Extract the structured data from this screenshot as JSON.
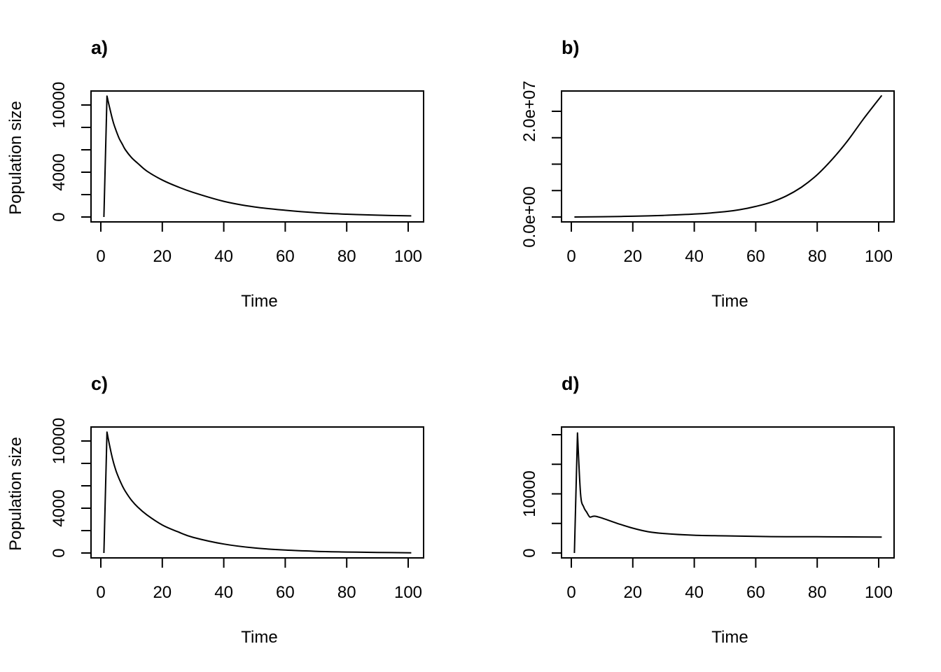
{
  "chart_data": [
    {
      "type": "line",
      "panel": "a",
      "title": "a)",
      "xlabel": "Time",
      "ylabel": "Population size",
      "xlim": [
        1,
        101
      ],
      "ylim": [
        0,
        11000
      ],
      "x_ticks": [
        0,
        20,
        40,
        60,
        80,
        100
      ],
      "y_ticks": [
        0,
        2000,
        4000,
        6000,
        8000,
        10000
      ],
      "y_tick_labels": [
        "0",
        "",
        "4000",
        "",
        "",
        "10000"
      ],
      "grid": false,
      "x": [
        1,
        2,
        3,
        4,
        5,
        6,
        7,
        8,
        10,
        12,
        15,
        20,
        25,
        30,
        40,
        50,
        60,
        70,
        80,
        90,
        101
      ],
      "values": [
        0,
        10800,
        9600,
        8500,
        7700,
        7000,
        6500,
        6000,
        5300,
        4800,
        4100,
        3300,
        2700,
        2200,
        1400,
        900,
        600,
        380,
        250,
        160,
        100
      ]
    },
    {
      "type": "line",
      "panel": "b",
      "title": "b)",
      "xlabel": "Time",
      "ylabel": "",
      "xlim": [
        1,
        101
      ],
      "ylim": [
        0,
        24000000
      ],
      "x_ticks": [
        0,
        20,
        40,
        60,
        80,
        100
      ],
      "y_ticks": [
        0,
        5000000,
        10000000,
        15000000,
        20000000
      ],
      "y_tick_labels": [
        "0.0e+00",
        "",
        "",
        "",
        "2.0e+07"
      ],
      "grid": false,
      "x": [
        1,
        10,
        20,
        30,
        40,
        50,
        55,
        60,
        65,
        70,
        75,
        80,
        85,
        90,
        95,
        101
      ],
      "values": [
        0,
        50000,
        150000,
        300000,
        550000,
        1000000,
        1400000,
        2000000,
        2800000,
        4000000,
        5700000,
        8000000,
        11000000,
        14500000,
        18500000,
        23000000
      ]
    },
    {
      "type": "line",
      "panel": "c",
      "title": "c)",
      "xlabel": "Time",
      "ylabel": "Population size",
      "xlim": [
        1,
        101
      ],
      "ylim": [
        0,
        11000
      ],
      "x_ticks": [
        0,
        20,
        40,
        60,
        80,
        100
      ],
      "y_ticks": [
        0,
        2000,
        4000,
        6000,
        8000,
        10000
      ],
      "y_tick_labels": [
        "0",
        "",
        "4000",
        "",
        "",
        "10000"
      ],
      "grid": false,
      "x": [
        1,
        2,
        3,
        4,
        5,
        6,
        7,
        8,
        10,
        12,
        15,
        20,
        25,
        30,
        40,
        50,
        60,
        70,
        80,
        90,
        101
      ],
      "values": [
        0,
        10800,
        9400,
        8200,
        7300,
        6600,
        6000,
        5500,
        4700,
        4100,
        3400,
        2500,
        1900,
        1400,
        800,
        450,
        260,
        150,
        90,
        50,
        20
      ]
    },
    {
      "type": "line",
      "panel": "d",
      "title": "d)",
      "xlabel": "Time",
      "ylabel": "",
      "xlim": [
        1,
        101
      ],
      "ylim": [
        0,
        21000
      ],
      "x_ticks": [
        0,
        20,
        40,
        60,
        80,
        100
      ],
      "y_ticks": [
        0,
        5000,
        10000,
        15000,
        20000
      ],
      "y_tick_labels": [
        "0",
        "",
        "10000",
        "",
        ""
      ],
      "grid": false,
      "x": [
        1,
        2,
        3,
        4,
        5,
        6,
        7,
        8,
        10,
        15,
        20,
        25,
        30,
        40,
        50,
        60,
        70,
        80,
        90,
        101
      ],
      "values": [
        0,
        20300,
        10000,
        7800,
        6900,
        6100,
        6200,
        6200,
        5900,
        5000,
        4200,
        3600,
        3300,
        3000,
        2900,
        2800,
        2750,
        2750,
        2720,
        2700
      ]
    }
  ],
  "panels": {
    "a": {
      "title": "a)",
      "xlabel": "Time",
      "ylabel": "Population size"
    },
    "b": {
      "title": "b)",
      "xlabel": "Time",
      "ylabel": ""
    },
    "c": {
      "title": "c)",
      "xlabel": "Time",
      "ylabel": "Population size"
    },
    "d": {
      "title": "d)",
      "xlabel": "Time",
      "ylabel": ""
    }
  },
  "x_tick_labels": [
    "0",
    "20",
    "40",
    "60",
    "80",
    "100"
  ]
}
